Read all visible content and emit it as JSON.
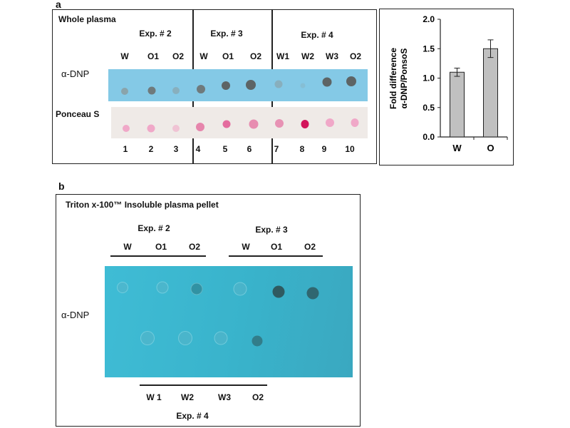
{
  "panel_a": {
    "label": "a",
    "title": "Whole plasma",
    "experiments": [
      "Exp. # 2",
      "Exp. # 3",
      "Exp. # 4"
    ],
    "lanes": [
      "W",
      "O1",
      "O2",
      "W",
      "O1",
      "O2",
      "W1",
      "W2",
      "W3",
      "O2"
    ],
    "row_labels": [
      "α-DNP",
      "Ponceau S"
    ],
    "lane_numbers": [
      "1",
      "2",
      "3",
      "4",
      "5",
      "6",
      "7",
      "8",
      "9",
      "10"
    ]
  },
  "panel_b": {
    "label": "b",
    "title": "Triton x-100™ Insoluble plasma pellet",
    "top_experiments": [
      "Exp. # 2",
      "Exp. # 3"
    ],
    "top_lanes": [
      "W",
      "O1",
      "O2",
      "W",
      "O1",
      "O2"
    ],
    "row_label": "α-DNP",
    "bottom_lanes": [
      "W 1",
      "W2",
      "W3",
      "O2"
    ],
    "bottom_experiment": "Exp. # 4"
  },
  "chart_data": {
    "type": "bar",
    "categories": [
      "W",
      "O"
    ],
    "values": [
      1.1,
      1.5
    ],
    "errors": [
      0.07,
      0.15
    ],
    "ylabel_lines": [
      "Fold difference",
      "α-DNP/PonsoS"
    ],
    "ylim": [
      0,
      2.0
    ],
    "yticks": [
      "0.0",
      "0.5",
      "1.0",
      "1.5",
      "2.0"
    ],
    "bar_color": "#c0c0c0"
  }
}
